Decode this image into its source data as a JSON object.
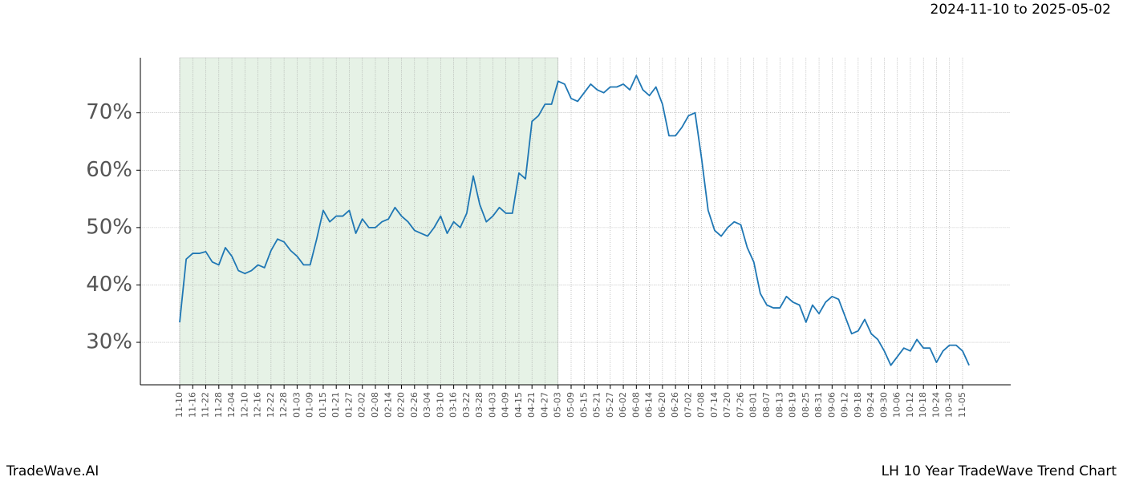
{
  "chart_data": {
    "type": "line",
    "title": "2024-11-10 to 2025-05-02",
    "brand": "TradeWave.AI",
    "subtitle": "LH 10 Year TradeWave Trend Chart",
    "categories": [
      "11-10",
      null,
      "11-16",
      null,
      "11-22",
      null,
      "11-28",
      null,
      "12-04",
      null,
      "12-10",
      null,
      "12-16",
      null,
      "12-22",
      null,
      "12-28",
      null,
      "01-03",
      null,
      "01-09",
      null,
      "01-15",
      null,
      "01-21",
      null,
      "01-27",
      null,
      "02-02",
      null,
      "02-08",
      null,
      "02-14",
      null,
      "02-20",
      null,
      "02-26",
      null,
      "03-04",
      null,
      "03-10",
      null,
      "03-16",
      null,
      "03-22",
      null,
      "03-28",
      null,
      "04-03",
      null,
      "04-09",
      null,
      "04-15",
      null,
      "04-21",
      null,
      "04-27",
      null,
      "05-03",
      null,
      "05-09",
      null,
      "05-15",
      null,
      "05-21",
      null,
      "05-27",
      null,
      "06-02",
      null,
      "06-08",
      null,
      "06-14",
      null,
      "06-20",
      null,
      "06-26",
      null,
      "07-02",
      null,
      "07-08",
      null,
      "07-14",
      null,
      "07-20",
      null,
      "07-26",
      null,
      "08-01",
      null,
      "08-07",
      null,
      "08-13",
      null,
      "08-19",
      null,
      "08-25",
      null,
      "08-31",
      null,
      "09-06",
      null,
      "09-12",
      null,
      "09-18",
      null,
      "09-24",
      null,
      "09-30",
      null,
      "10-06",
      null,
      "10-12",
      null,
      "10-18",
      null,
      "10-24",
      null,
      "10-30",
      null,
      "11-05",
      null
    ],
    "series": [
      {
        "name": "LH",
        "color": "#1f77b4",
        "values": [
          33.5,
          44.5,
          45.5,
          45.5,
          45.8,
          44,
          43.5,
          46.5,
          45,
          42.5,
          42,
          42.5,
          43.5,
          43,
          46,
          48,
          47.5,
          46,
          45,
          43.5,
          43.5,
          48,
          53,
          51,
          52,
          52,
          53,
          49,
          51.5,
          50,
          50,
          51,
          51.5,
          53.5,
          52,
          51,
          49.5,
          49,
          48.5,
          50,
          52,
          49,
          51,
          50,
          52.5,
          59,
          54,
          51,
          52,
          53.5,
          52.5,
          52.5,
          59.5,
          58.5,
          68.5,
          69.5,
          71.5,
          71.5,
          75.5,
          75,
          72.5,
          72,
          73.5,
          75,
          74,
          73.5,
          74.5,
          74.5,
          75,
          74,
          76.5,
          74,
          73,
          74.5,
          71.5,
          66,
          66,
          67.5,
          69.5,
          70,
          62,
          53,
          49.5,
          48.5,
          50,
          51,
          50.5,
          46.5,
          44,
          38.5,
          36.5,
          36,
          36,
          38,
          37,
          36.5,
          33.5,
          36.5,
          35,
          37,
          38,
          37.5,
          34.5,
          31.5,
          32,
          34,
          31.5,
          30.5,
          28.5,
          26,
          27.5,
          29,
          28.5,
          30.5,
          29,
          29,
          26.5,
          28.5,
          29.5,
          29.5,
          28.5,
          26
        ]
      }
    ],
    "ylim": [
      22.6,
      79.6
    ],
    "yticks": [
      {
        "value": 30,
        "label": "30%"
      },
      {
        "value": 40,
        "label": "40%"
      },
      {
        "value": 50,
        "label": "50%"
      },
      {
        "value": 60,
        "label": "60%"
      },
      {
        "value": 70,
        "label": "70%"
      }
    ],
    "grid": true,
    "shaded_categories": [
      0,
      58
    ],
    "shade_color": "#e6f2e6"
  }
}
